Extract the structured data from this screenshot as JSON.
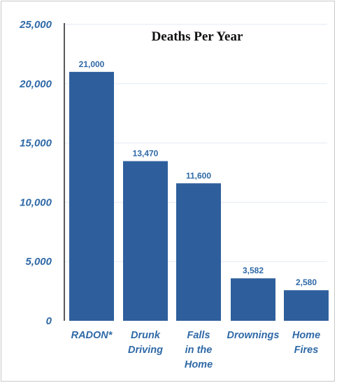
{
  "chart_data": {
    "type": "bar",
    "title": "Deaths Per Year",
    "xlabel": "",
    "ylabel": "",
    "categories": [
      "RADON*",
      "Drunk Driving",
      "Falls in the Home",
      "Drownings",
      "Home Fires"
    ],
    "category_lines": [
      [
        "RADON*"
      ],
      [
        "Drunk",
        "Driving"
      ],
      [
        "Falls",
        "in the",
        "Home"
      ],
      [
        "Drownings"
      ],
      [
        "Home",
        "Fires"
      ]
    ],
    "values": [
      21000,
      13470,
      11600,
      3582,
      2580
    ],
    "data_labels": [
      "21,000",
      "13,470",
      "11,600",
      "3,582",
      "2,580"
    ],
    "yticks": [
      0,
      5000,
      10000,
      15000,
      20000,
      25000
    ],
    "ytick_labels": [
      "0",
      "5,000",
      "10,000",
      "15,000",
      "20,000",
      "25,000"
    ],
    "ylim": [
      0,
      25000
    ],
    "grid": false,
    "legend": "none",
    "colors": {
      "bar": "#2e5f9c",
      "axis_text": "#2f69a6",
      "title": "#111111",
      "gridline": "#aec3dc"
    }
  }
}
